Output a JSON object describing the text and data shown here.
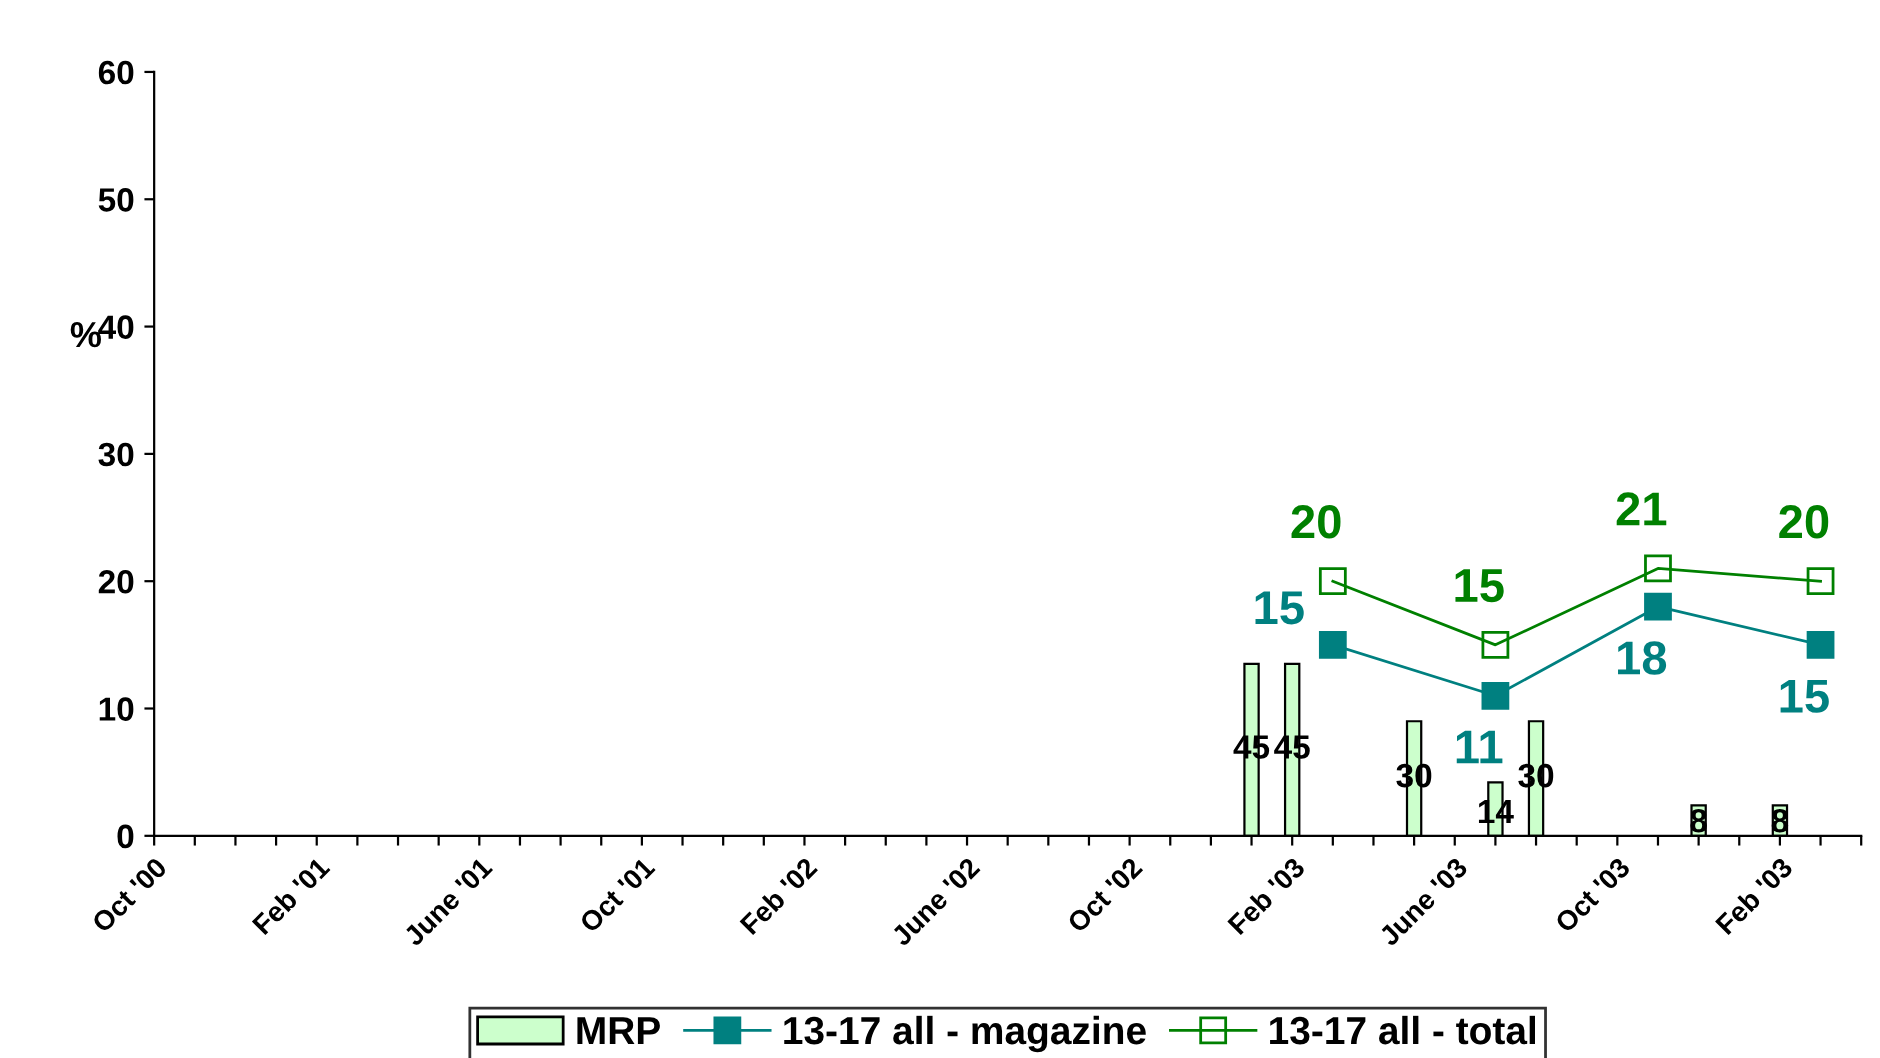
{
  "chart_data": {
    "type": "bar",
    "ylabel": "%",
    "categories": [
      "Oct '00",
      null,
      null,
      null,
      "Feb '01",
      null,
      null,
      null,
      "June '01",
      null,
      null,
      null,
      "Oct '01",
      null,
      null,
      null,
      "Feb '02",
      null,
      null,
      null,
      "June '02",
      null,
      null,
      null,
      "Oct '02",
      null,
      null,
      null,
      "Feb '03",
      null,
      null,
      null,
      "June '03",
      null,
      null,
      null,
      "Oct '03",
      null,
      null,
      null,
      "Feb '03",
      null,
      null
    ],
    "series": [
      {
        "name": "MRP",
        "axis": "y2",
        "color": "#ccffcc",
        "values": [
          null,
          null,
          null,
          null,
          null,
          null,
          null,
          null,
          null,
          null,
          null,
          null,
          null,
          null,
          null,
          null,
          null,
          null,
          null,
          null,
          null,
          null,
          null,
          null,
          null,
          null,
          null,
          45,
          45,
          null,
          null,
          30,
          null,
          14,
          30,
          null,
          null,
          null,
          8,
          null,
          8,
          null,
          null
        ]
      },
      {
        "name": "13-17 all - magazine",
        "type": "line",
        "color": "#008080",
        "marker": "square",
        "values": [
          null,
          null,
          null,
          null,
          null,
          null,
          null,
          null,
          null,
          null,
          null,
          null,
          null,
          null,
          null,
          null,
          null,
          null,
          null,
          null,
          null,
          null,
          null,
          null,
          null,
          null,
          null,
          null,
          null,
          15,
          null,
          null,
          null,
          11,
          null,
          null,
          null,
          18,
          null,
          null,
          null,
          15,
          null
        ]
      },
      {
        "name": "13-17 all - total",
        "type": "line",
        "color": "#008000",
        "marker": "square",
        "values": [
          null,
          null,
          null,
          null,
          null,
          null,
          null,
          null,
          null,
          null,
          null,
          null,
          null,
          null,
          null,
          null,
          null,
          null,
          null,
          null,
          null,
          null,
          null,
          null,
          null,
          null,
          null,
          null,
          null,
          20,
          null,
          null,
          null,
          15,
          null,
          null,
          null,
          21,
          null,
          null,
          null,
          20,
          null
        ]
      }
    ],
    "ylim": [
      0,
      60
    ],
    "yticks": [
      0,
      10,
      20,
      30,
      40,
      50,
      60
    ],
    "y2lim": [
      0,
      200
    ],
    "data_labels": true,
    "grid": false,
    "legend": "bottom",
    "line_style": "solid"
  }
}
